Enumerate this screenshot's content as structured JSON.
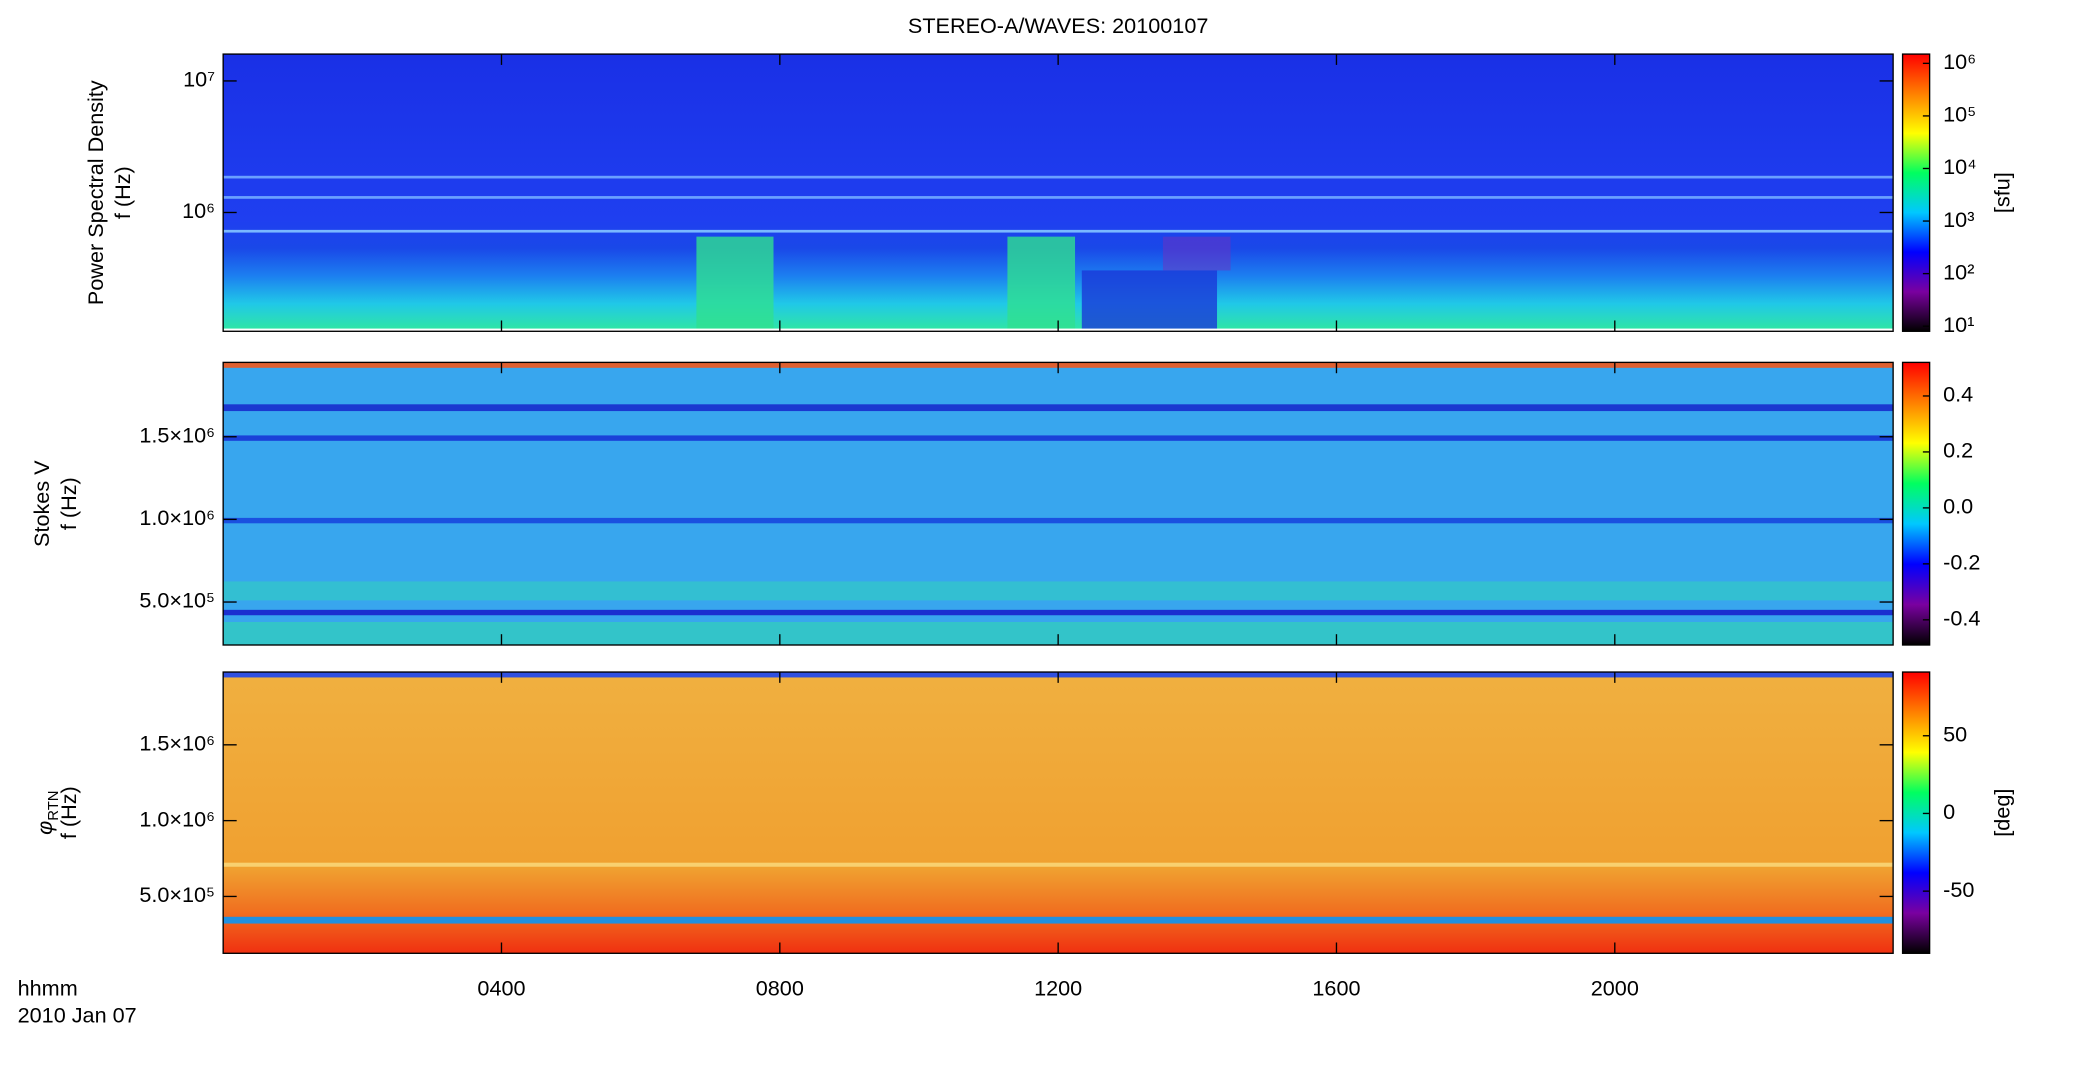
{
  "chart_data": [
    {
      "type": "heatmap",
      "title": "STEREO-A/WAVES: 20100107",
      "ylabel": "Power Spectral Density",
      "ylabel2": "f (Hz)",
      "ylog": true,
      "ylim": [
        125000,
        16000000
      ],
      "yticks": [
        {
          "value": 1000000,
          "label": "10⁶"
        },
        {
          "value": 10000000,
          "label": "10⁷"
        }
      ],
      "colorbar": {
        "label": "[sfu]",
        "log": true,
        "lim": [
          8,
          1500000
        ],
        "ticks": [
          {
            "value": 10,
            "label": "10¹"
          },
          {
            "value": 100,
            "label": "10²"
          },
          {
            "value": 1000,
            "label": "10³"
          },
          {
            "value": 10000,
            "label": "10⁴"
          },
          {
            "value": 100000,
            "label": "10⁵"
          },
          {
            "value": 1000000,
            "label": "10⁶"
          }
        ],
        "colors": [
          "#000000",
          "#7a00a0",
          "#0000ff",
          "#00c8ff",
          "#00ff60",
          "#ffff00",
          "#ff8000",
          "#ff0000"
        ]
      }
    },
    {
      "type": "heatmap",
      "ylabel": "Stokes V",
      "ylabel2": "f (Hz)",
      "ylog": false,
      "ylim": [
        240000,
        1950000
      ],
      "yticks": [
        {
          "value": 500000,
          "label": "5.0×10⁵"
        },
        {
          "value": 1000000,
          "label": "1.0×10⁶"
        },
        {
          "value": 1500000,
          "label": "1.5×10⁶"
        }
      ],
      "colorbar": {
        "log": false,
        "lim": [
          -0.49,
          0.52
        ],
        "ticks": [
          -0.4,
          -0.2,
          {
            "value": 0,
            "label": "0.0"
          },
          0.2,
          0.4
        ],
        "colors": [
          "#000000",
          "#7a00a0",
          "#0000ff",
          "#00c8ff",
          "#00ff60",
          "#ffff00",
          "#ff8000",
          "#ff0000"
        ]
      }
    },
    {
      "type": "heatmap",
      "ylabel": "φ",
      "ylabel_sub": "RTN",
      "ylabel2": "f (Hz)",
      "ylog": false,
      "ylim": [
        125000,
        1980000
      ],
      "yticks": [
        {
          "value": 500000,
          "label": "5.0×10⁵"
        },
        {
          "value": 1000000,
          "label": "1.0×10⁶"
        },
        {
          "value": 1500000,
          "label": "1.5×10⁶"
        }
      ],
      "colorbar": {
        "label": "[deg]",
        "log": false,
        "lim": [
          -90,
          91
        ],
        "ticks": [
          -50,
          0,
          50
        ],
        "colors": [
          "#000000",
          "#7a00a0",
          "#0000ff",
          "#00c8ff",
          "#00ff60",
          "#ffff00",
          "#ff8000",
          "#ff0000"
        ]
      },
      "xlabel": "hhmm",
      "date": "2010 Jan 07",
      "xlim": [
        0,
        24
      ],
      "xticks": [
        {
          "value": 4,
          "label": "0400"
        },
        {
          "value": 8,
          "label": "0800"
        },
        {
          "value": 12,
          "label": "1200"
        },
        {
          "value": 16,
          "label": "1600"
        },
        {
          "value": 20,
          "label": "2000"
        }
      ]
    }
  ]
}
